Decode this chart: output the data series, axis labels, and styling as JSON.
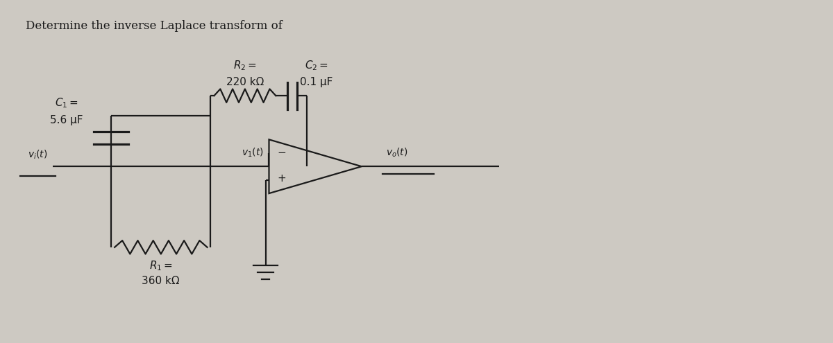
{
  "title": "Determine the inverse Laplace transform of",
  "title_fontsize": 12,
  "bg_color": "#cdc9c2",
  "line_color": "#1a1a1a",
  "label_R2_val": "220 kΩ",
  "label_C2_val": "0.1 μF",
  "label_C1_val": "5.6 μF",
  "label_R1_val": "360 kΩ"
}
